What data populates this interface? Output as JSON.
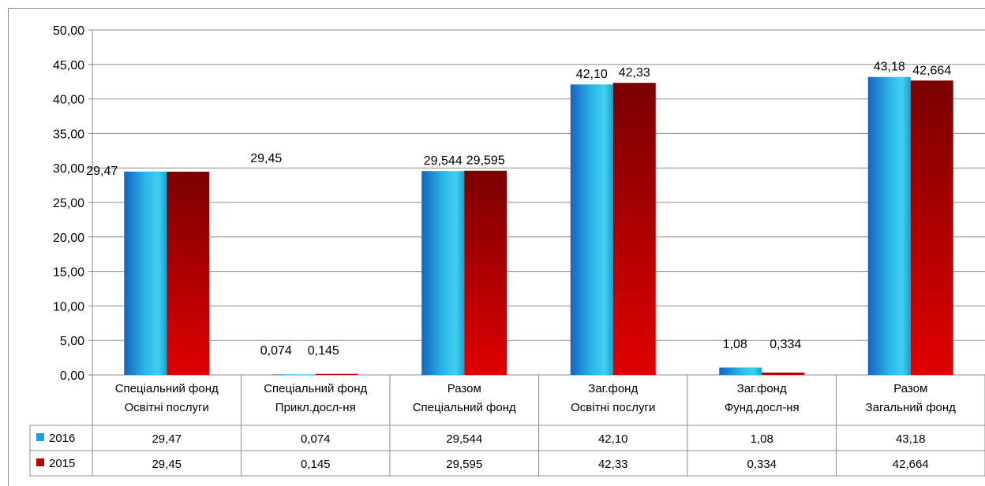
{
  "chart_data": {
    "type": "bar",
    "categories": [
      [
        "Спеціальний фонд",
        "Освітні послуги"
      ],
      [
        "Спеціальний фонд",
        "Прикл.досл-ня"
      ],
      [
        "Разом",
        "Спеціальний фонд"
      ],
      [
        "Заг.фонд",
        "Освітні послуги"
      ],
      [
        "Заг.фонд",
        "Фунд.досл-ня"
      ],
      [
        "Разом",
        "Загальний фонд"
      ]
    ],
    "series": [
      {
        "name": "2016",
        "color": "#1aa3d9",
        "values": [
          29.47,
          0.074,
          29.544,
          42.1,
          1.08,
          43.18
        ],
        "labels": [
          "29,47",
          "0,074",
          "29,544",
          "42,10",
          "1,08",
          "43,18"
        ]
      },
      {
        "name": "2015",
        "color": "#c00000",
        "values": [
          29.45,
          0.145,
          29.595,
          42.33,
          0.334,
          42.664
        ],
        "labels": [
          "29,45",
          "0,145",
          "29,595",
          "42,33",
          "0,334",
          "42,664"
        ]
      }
    ],
    "ylim": [
      0,
      50
    ],
    "yticks": [
      "0,00",
      "5,00",
      "10,00",
      "15,00",
      "20,00",
      "25,00",
      "30,00",
      "35,00",
      "40,00",
      "45,00",
      "50,00"
    ],
    "grid": true,
    "legend": "data-table",
    "title": "",
    "xlabel": "",
    "ylabel": ""
  }
}
